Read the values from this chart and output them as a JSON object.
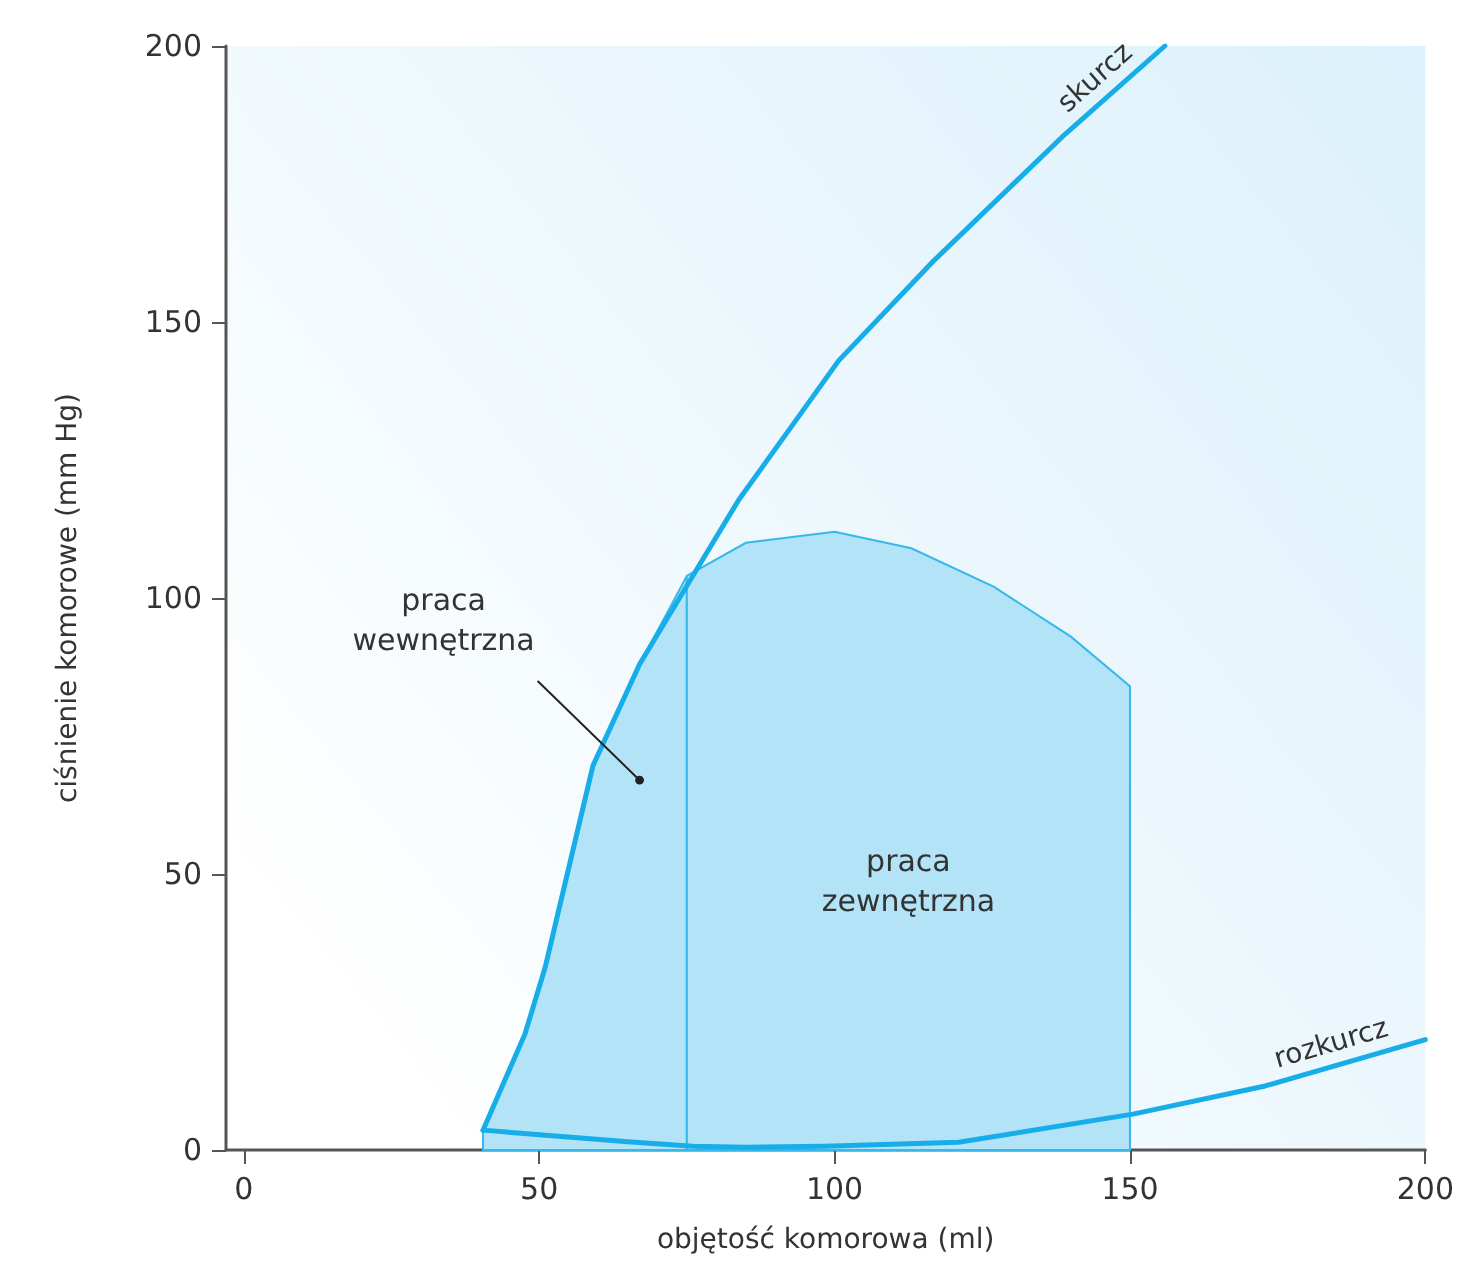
{
  "chart_data": {
    "type": "line",
    "xlabel": "objętość komorowa (ml)",
    "ylabel": "ciśnienie komorowe (mm Hg)",
    "xlim": [
      -3,
      200
    ],
    "xticks": [
      0,
      50,
      100,
      150,
      200
    ],
    "ylim": [
      0,
      200
    ],
    "yticks": [
      0,
      50,
      100,
      150,
      200
    ],
    "series": [
      {
        "type": "area",
        "color": "#b3e3f7",
        "x": [
          40.5,
          47.6,
          51,
          59.1,
          67,
          75
        ],
        "values": [
          3.6,
          21,
          33,
          69.6,
          88,
          104
        ]
      },
      {
        "type": "area",
        "color": "#b3e3f7",
        "x": [
          75,
          85,
          100,
          113,
          127,
          140,
          150
        ],
        "values": [
          104,
          110,
          112,
          109,
          102,
          93,
          84
        ]
      },
      {
        "name": "skurcz",
        "type": "line",
        "color": "#17ade8",
        "x": [
          40.5,
          47.6,
          51,
          59.1,
          67,
          76,
          83.8,
          94,
          100.7,
          116.7,
          139,
          155.9
        ],
        "values": [
          3.6,
          21,
          33,
          69.6,
          88,
          104,
          117.8,
          133,
          143,
          161,
          184,
          200
        ]
      },
      {
        "name": "rozkurcz",
        "type": "line",
        "color": "#17ade8",
        "x": [
          40.5,
          53.3,
          65,
          76,
          85,
          98.4,
          121,
          150.5,
          172.9,
          200
        ],
        "values": [
          3.6,
          2.5,
          1.5,
          0.7,
          0.5,
          0.7,
          1.4,
          6.5,
          11.6,
          20
        ]
      }
    ],
    "annotations": [
      {
        "text": "praca\nwewnętrzna",
        "x": 67,
        "y": 67
      },
      "praca\nzewnętrzna"
    ]
  }
}
